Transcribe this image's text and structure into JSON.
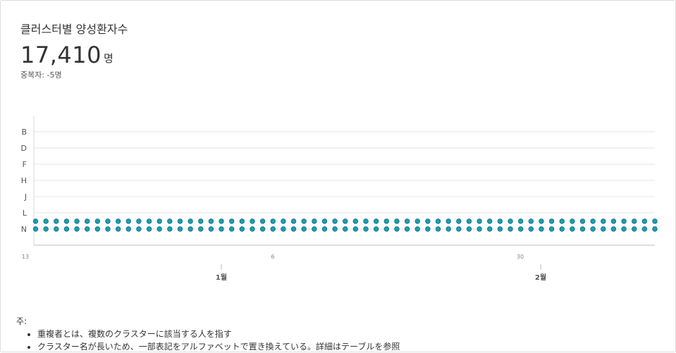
{
  "header": {
    "title": "클러스터별 양성환자수",
    "total_value": "17,410",
    "total_unit": "명",
    "duplicate_note": "중복자: -5명"
  },
  "chart_data": {
    "type": "scatter",
    "title": "",
    "xlabel": "",
    "ylabel": "",
    "y_categories": [
      "B",
      "D",
      "F",
      "H",
      "J",
      "L",
      "N"
    ],
    "x_tick_labels": [
      "13",
      "6",
      "30"
    ],
    "x_month_labels": [
      "1월",
      "2월"
    ],
    "grid": true,
    "point_color": "#1a9eb5",
    "series": [
      {
        "category": "N",
        "points_per_row": 61,
        "rows": 2
      }
    ]
  },
  "notes": {
    "label": "주:",
    "items": [
      "重複者とは、複数のクラスターに該当する人を指す",
      "クラスター名が長いため、一部表記をアルファベットで置き換えている。詳細はテーブルを参照"
    ]
  }
}
